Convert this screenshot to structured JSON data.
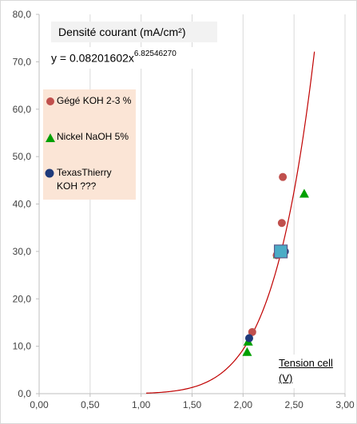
{
  "chart_data": {
    "type": "scatter",
    "ylabel": "Densité courant (mA/cm²)",
    "xlabel": "Tension cell (V)",
    "xlabel_line1": "Tension cell",
    "xlabel_line2": "(V)",
    "xlim": [
      0,
      3
    ],
    "ylim": [
      0,
      80
    ],
    "x_ticks": [
      0,
      0.5,
      1,
      1.5,
      2,
      2.5,
      3
    ],
    "y_ticks": [
      0,
      10,
      20,
      30,
      40,
      50,
      60,
      70,
      80
    ],
    "x_tick_labels": [
      "0,00",
      "0,50",
      "1,00",
      "1,50",
      "2,00",
      "2,50",
      "3,00"
    ],
    "y_tick_labels": [
      "0,0",
      "10,0",
      "20,0",
      "30,0",
      "40,0",
      "50,0",
      "60,0",
      "70,0",
      "80,0"
    ],
    "grid": "vertical",
    "trendline": {
      "type": "power",
      "equation_prefix": "y = 0.08201602x",
      "equation_exponent": "6.82546270",
      "a": 0.08201602,
      "b": 6.8254627,
      "x_range": [
        1.05,
        2.7
      ],
      "color": "#c00000"
    },
    "series": [
      {
        "name": "Gégé KOH 2-3 %",
        "marker": "circle",
        "color": "#c0504d",
        "points": [
          [
            2.09,
            13.0
          ],
          [
            2.33,
            29.2
          ],
          [
            2.38,
            36.0
          ],
          [
            2.39,
            45.7
          ]
        ]
      },
      {
        "name": "Nickel NaOH 5%",
        "marker": "triangle",
        "color": "#00a000",
        "points": [
          [
            2.04,
            8.8
          ],
          [
            2.05,
            11.0
          ],
          [
            2.34,
            29.4
          ],
          [
            2.6,
            42.2
          ]
        ]
      },
      {
        "name": "TexasThierry KOH ???",
        "marker": "circle",
        "color": "#1f3a7a",
        "points": [
          [
            2.06,
            11.7
          ],
          [
            2.41,
            30.0
          ]
        ]
      },
      {
        "name": "",
        "marker": "square",
        "color": "#4bacc6",
        "points": [
          [
            2.37,
            30.0
          ]
        ]
      }
    ]
  }
}
